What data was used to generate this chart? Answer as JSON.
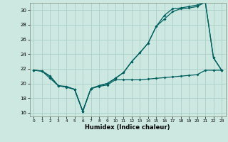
{
  "xlabel": "Humidex (Indice chaleur)",
  "bg_color": "#cce8e0",
  "line_color": "#006060",
  "grid_color": "#aacfc8",
  "xlim": [
    -0.5,
    23.5
  ],
  "ylim": [
    15.5,
    31.0
  ],
  "xticks": [
    0,
    1,
    2,
    3,
    4,
    5,
    6,
    7,
    8,
    9,
    10,
    11,
    12,
    13,
    14,
    15,
    16,
    17,
    18,
    19,
    20,
    21,
    22,
    23
  ],
  "yticks": [
    16,
    18,
    20,
    22,
    24,
    26,
    28,
    30
  ],
  "line1_x": [
    0,
    1,
    2,
    3,
    4,
    5,
    6,
    7,
    8,
    9,
    10,
    11,
    12,
    13,
    14,
    15,
    16,
    17,
    18,
    19,
    20,
    21,
    22,
    23
  ],
  "line1_y": [
    21.8,
    21.7,
    20.7,
    19.7,
    19.6,
    19.2,
    16.2,
    19.3,
    19.6,
    19.8,
    20.5,
    20.5,
    20.5,
    20.5,
    20.6,
    20.7,
    20.8,
    20.9,
    21.0,
    21.1,
    21.2,
    21.8,
    21.8,
    21.8
  ],
  "line2_x": [
    0,
    1,
    2,
    3,
    4,
    5,
    6,
    7,
    8,
    9,
    10,
    11,
    12,
    13,
    14,
    15,
    16,
    17,
    18,
    19,
    20,
    21,
    22,
    23
  ],
  "line2_y": [
    21.8,
    21.7,
    21.0,
    19.7,
    19.5,
    19.2,
    16.2,
    19.3,
    19.7,
    20.0,
    20.7,
    21.5,
    23.0,
    24.2,
    25.5,
    27.8,
    28.8,
    29.8,
    30.2,
    30.3,
    30.5,
    31.1,
    23.5,
    21.8
  ],
  "line3_x": [
    0,
    1,
    2,
    3,
    4,
    5,
    6,
    7,
    8,
    9,
    10,
    11,
    12,
    13,
    14,
    15,
    16,
    17,
    18,
    19,
    20,
    21,
    22,
    23
  ],
  "line3_y": [
    21.8,
    21.7,
    21.0,
    19.7,
    19.5,
    19.2,
    16.2,
    19.3,
    19.7,
    20.0,
    20.7,
    21.5,
    23.0,
    24.2,
    25.5,
    27.8,
    29.3,
    30.2,
    30.3,
    30.5,
    30.7,
    31.1,
    23.5,
    21.8
  ]
}
